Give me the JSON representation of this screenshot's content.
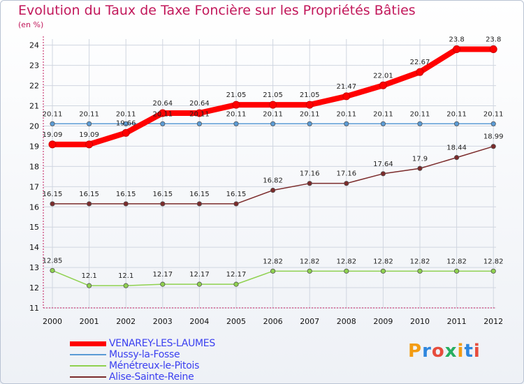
{
  "chart_data": {
    "type": "line",
    "title": "Evolution du Taux de Taxe Foncière sur les Propriétés Bâties",
    "subtitle": "(en %)",
    "x": [
      "2000",
      "2001",
      "2002",
      "2003",
      "2004",
      "2005",
      "2006",
      "2007",
      "2008",
      "2009",
      "2010",
      "2011",
      "2012"
    ],
    "ylim": [
      11,
      24.3
    ],
    "yticks": [
      11,
      12,
      13,
      14,
      15,
      16,
      17,
      18,
      19,
      20,
      21,
      22,
      23,
      24
    ],
    "grid": true,
    "series": [
      {
        "name": "VENAREY-LES-LAUMES",
        "color": "#ff0000",
        "values": [
          19.09,
          19.09,
          19.66,
          20.64,
          20.64,
          21.05,
          21.05,
          21.05,
          21.47,
          22.01,
          22.67,
          23.8,
          23.8
        ],
        "labels": [
          "19.09",
          "19.09",
          "19.66",
          "20.64",
          "20.64",
          "21.05",
          "21.05",
          "21.05",
          "21.47",
          "22.01",
          "22.67",
          "23.8",
          "23.8"
        ]
      },
      {
        "name": "Mussy-la-Fosse",
        "color": "#5b9bd5",
        "values": [
          20.11,
          20.11,
          20.11,
          20.11,
          20.11,
          20.11,
          20.11,
          20.11,
          20.11,
          20.11,
          20.11,
          20.11,
          20.11
        ],
        "labels": [
          "20.11",
          "20.11",
          "20.11",
          "20.11",
          "20.11",
          "20.11",
          "20.11",
          "20.11",
          "20.11",
          "20.11",
          "20.11",
          "20.11",
          "20.11"
        ]
      },
      {
        "name": "Ménétreux-le-Pitois",
        "color": "#8fd14f",
        "values": [
          12.85,
          12.1,
          12.1,
          12.17,
          12.17,
          12.17,
          12.82,
          12.82,
          12.82,
          12.82,
          12.82,
          12.82,
          12.82
        ],
        "labels": [
          "12.85",
          "12.1",
          "12.1",
          "12.17",
          "12.17",
          "12.17",
          "12.82",
          "12.82",
          "12.82",
          "12.82",
          "12.82",
          "12.82",
          "12.82"
        ]
      },
      {
        "name": "Alise-Sainte-Reine",
        "color": "#7b2b2b",
        "values": [
          16.15,
          16.15,
          16.15,
          16.15,
          16.15,
          16.15,
          16.82,
          17.16,
          17.16,
          17.64,
          17.9,
          18.44,
          18.99
        ],
        "labels": [
          "16.15",
          "16.15",
          "16.15",
          "16.15",
          "16.15",
          "16.15",
          "16.82",
          "17.16",
          "17.16",
          "17.64",
          "17.9",
          "18.44",
          "18.99"
        ]
      }
    ],
    "legend_position": "bottom-left"
  },
  "logo": {
    "text": "Proxiti",
    "colors": [
      "#f39c12",
      "#2e86de",
      "#e74c3c",
      "#27ae60",
      "#f39c12",
      "#2e86de",
      "#e74c3c"
    ]
  }
}
